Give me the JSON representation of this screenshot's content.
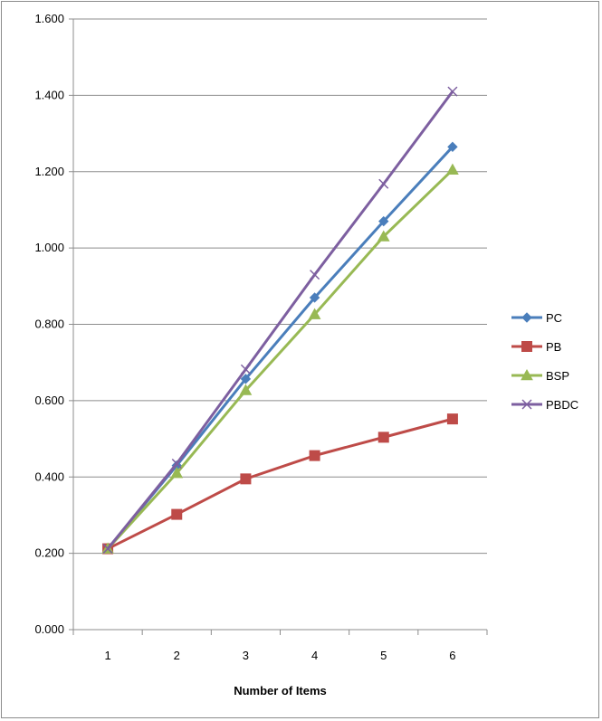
{
  "chart_data": {
    "type": "line",
    "xlabel": "Number of Items",
    "ylabel": "",
    "categories": [
      "1",
      "2",
      "3",
      "4",
      "5",
      "6"
    ],
    "ylim": [
      0,
      1.6
    ],
    "yticks": [
      "0.000",
      "0.200",
      "0.400",
      "0.600",
      "0.800",
      "1.000",
      "1.200",
      "1.400",
      "1.600"
    ],
    "grid": "horizontal",
    "legend_position": "right",
    "series": [
      {
        "name": "PC",
        "color": "#4a7ebb",
        "marker": "diamond",
        "values": [
          0.212,
          0.43,
          0.657,
          0.87,
          1.07,
          1.265
        ]
      },
      {
        "name": "PB",
        "color": "#be4b48",
        "marker": "square",
        "values": [
          0.212,
          0.302,
          0.395,
          0.456,
          0.504,
          0.552
        ]
      },
      {
        "name": "BSP",
        "color": "#98b954",
        "marker": "triangle",
        "values": [
          0.212,
          0.41,
          0.627,
          0.826,
          1.03,
          1.205
        ]
      },
      {
        "name": "PBDC",
        "color": "#7d5fa0",
        "marker": "x",
        "values": [
          0.212,
          0.435,
          0.682,
          0.93,
          1.168,
          1.41
        ]
      }
    ]
  }
}
